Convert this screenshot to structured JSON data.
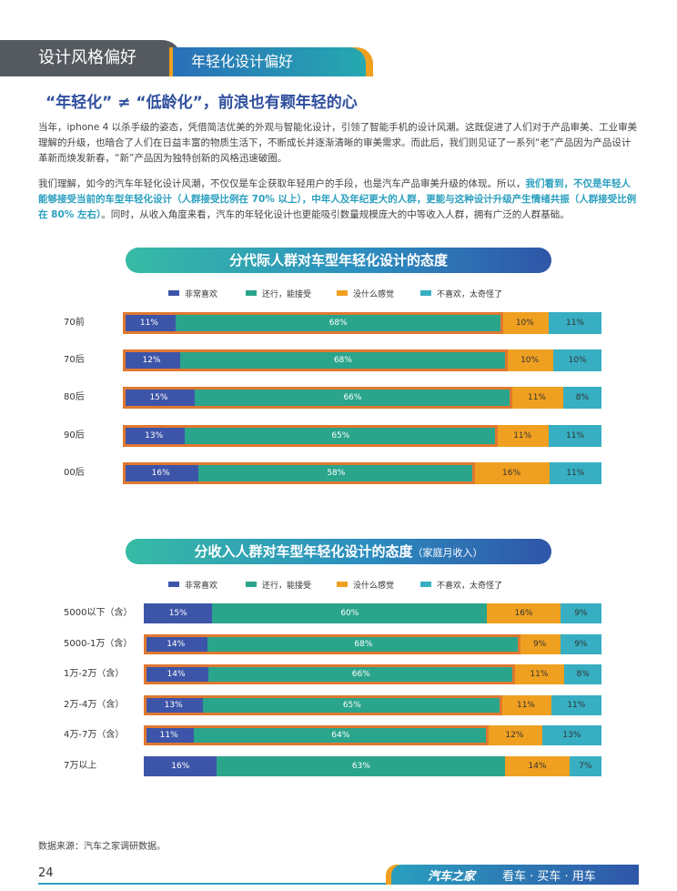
{
  "header": {
    "section_tab": "设计风格偏好",
    "sub_tab": "年轻化设计偏好"
  },
  "headline": "“年轻化” ≠ “低龄化”，前浪也有颗年轻的心",
  "paragraph1": "当年，iphone 4 以杀手级的姿态，凭借简洁优美的外观与智能化设计，引领了智能手机的设计风潮。这既促进了人们对于产品审美、工业审美理解的升级，也暗合了人们在日益丰富的物质生活下，不断成长并逐渐清晰的审美需求。而此后，我们则见证了一系列“老”产品因为产品设计革新而焕发新春，“新”产品因为独特创新的风格迅速破圈。",
  "paragraph2": {
    "part1": "我们理解，如今的汽车年轻化设计风潮，不仅仅是车企获取年轻用户的手段，也是汽车产品审美升级的体现。所以，",
    "highlight": "我们看到，不仅是年轻人能够接受当前的车型年轻化设计（人群接受比例在 70% 以上），中年人及年纪更大的人群，更能与这种设计升级产生情绪共振（人群接受比例在 80% 左右）",
    "part2": "。同时，从收入角度来看，汽车的年轻化设计也更能吸引数量规模庞大的中等收入人群，拥有广泛的人群基础。"
  },
  "legend": [
    "非常喜欢",
    "还行，能接受",
    "没什么感觉",
    "不喜欢，太奇怪了"
  ],
  "colors": {
    "series": [
      "#3d55a8",
      "#2aa58c",
      "#f0a020",
      "#37aec1"
    ],
    "highlight_outline": "#e07830",
    "label_on_dark": "#ffffff",
    "label_on_light": "#333333"
  },
  "chart_data": [
    {
      "type": "bar",
      "orientation": "horizontal",
      "stacked": "100%",
      "title": "分代际人群对车型年轻化设计的态度",
      "subtitle": "",
      "categories": [
        "70前",
        "70后",
        "80后",
        "90后",
        "00后"
      ],
      "series": [
        {
          "name": "非常喜欢",
          "values": [
            11,
            12,
            15,
            13,
            16
          ]
        },
        {
          "name": "还行，能接受",
          "values": [
            68,
            68,
            66,
            65,
            58
          ]
        },
        {
          "name": "没什么感觉",
          "values": [
            10,
            10,
            11,
            11,
            16
          ]
        },
        {
          "name": "不喜欢，太奇怪了",
          "values": [
            11,
            10,
            8,
            11,
            11
          ]
        }
      ],
      "highlighted_categories": [
        "70前",
        "70后",
        "80后",
        "90后",
        "00后"
      ],
      "legend_position": "top"
    },
    {
      "type": "bar",
      "orientation": "horizontal",
      "stacked": "100%",
      "title": "分收入人群对车型年轻化设计的态度",
      "subtitle": "（家庭月收入）",
      "categories": [
        "5000以下（含）",
        "5000-1万（含）",
        "1万-2万（含）",
        "2万-4万（含）",
        "4万-7万（含）",
        "7万以上"
      ],
      "series": [
        {
          "name": "非常喜欢",
          "values": [
            15,
            14,
            14,
            13,
            11,
            16
          ]
        },
        {
          "name": "还行，能接受",
          "values": [
            60,
            68,
            66,
            65,
            64,
            63
          ]
        },
        {
          "name": "没什么感觉",
          "values": [
            16,
            9,
            11,
            11,
            12,
            14
          ]
        },
        {
          "name": "不喜欢，太奇怪了",
          "values": [
            9,
            9,
            8,
            11,
            13,
            7
          ]
        }
      ],
      "highlighted_categories": [
        "5000-1万（含）",
        "1万-2万（含）",
        "2万-4万（含）",
        "4万-7万（含）"
      ],
      "legend_position": "top"
    }
  ],
  "source": "数据来源：汽车之家调研数据。",
  "footer": {
    "page_number": "24",
    "brand": "汽车之家",
    "slogan": "看车 · 买车 · 用车"
  }
}
